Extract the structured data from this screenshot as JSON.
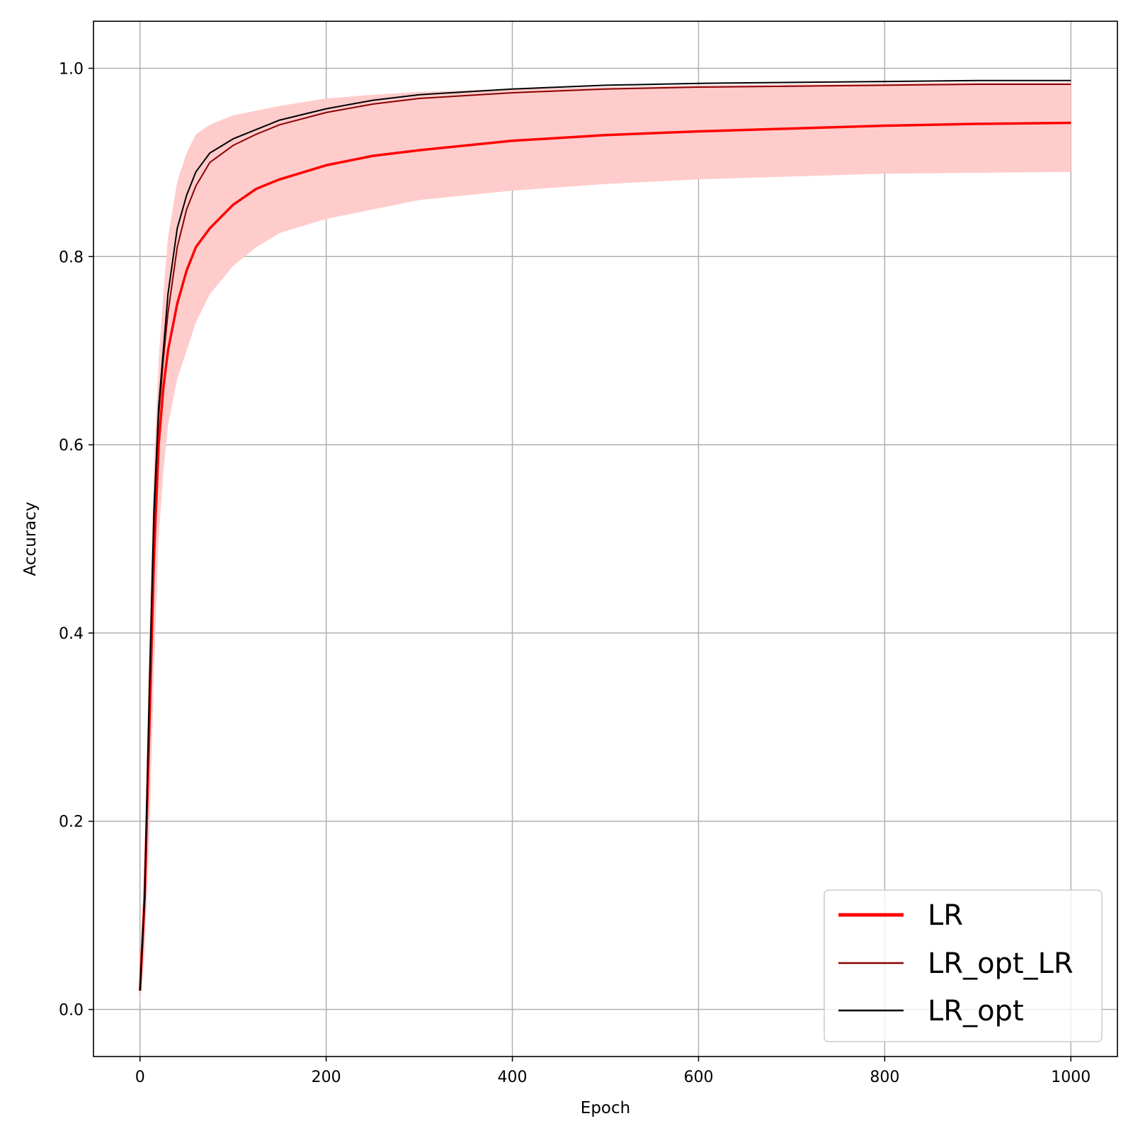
{
  "chart_data": {
    "type": "line",
    "title": "",
    "xlabel": "Epoch",
    "ylabel": "Accuracy",
    "xlim": [
      -50,
      1050
    ],
    "ylim": [
      -0.05,
      1.05
    ],
    "xticks": [
      0,
      200,
      400,
      600,
      800,
      1000
    ],
    "yticks": [
      0.0,
      0.2,
      0.4,
      0.6,
      0.8,
      1.0
    ],
    "xtick_labels": [
      "0",
      "200",
      "400",
      "600",
      "800",
      "1000"
    ],
    "ytick_labels": [
      "0.0",
      "0.2",
      "0.4",
      "0.6",
      "0.8",
      "1.0"
    ],
    "grid": true,
    "legend_position": "bottom-right",
    "series": [
      {
        "name": "LR",
        "color": "#ff0000",
        "x": [
          0,
          5,
          10,
          15,
          20,
          25,
          30,
          40,
          50,
          60,
          75,
          100,
          125,
          150,
          200,
          250,
          300,
          400,
          500,
          600,
          700,
          800,
          900,
          1000
        ],
        "y": [
          0.02,
          0.12,
          0.3,
          0.48,
          0.6,
          0.66,
          0.7,
          0.75,
          0.785,
          0.81,
          0.83,
          0.855,
          0.872,
          0.882,
          0.897,
          0.907,
          0.913,
          0.923,
          0.929,
          0.933,
          0.936,
          0.939,
          0.941,
          0.942
        ]
      },
      {
        "name": "LR_opt_LR",
        "color": "#8b0000",
        "x": [
          0,
          5,
          10,
          15,
          20,
          25,
          30,
          40,
          50,
          60,
          75,
          100,
          125,
          150,
          200,
          250,
          300,
          400,
          500,
          600,
          700,
          800,
          900,
          1000
        ],
        "y": [
          0.02,
          0.12,
          0.33,
          0.52,
          0.63,
          0.69,
          0.74,
          0.81,
          0.85,
          0.875,
          0.9,
          0.918,
          0.93,
          0.94,
          0.953,
          0.962,
          0.968,
          0.974,
          0.978,
          0.98,
          0.981,
          0.982,
          0.983,
          0.983
        ]
      },
      {
        "name": "LR_opt",
        "color": "#000000",
        "x": [
          0,
          5,
          10,
          15,
          20,
          25,
          30,
          40,
          50,
          60,
          75,
          100,
          125,
          150,
          200,
          250,
          300,
          400,
          500,
          600,
          700,
          800,
          900,
          1000
        ],
        "y": [
          0.02,
          0.12,
          0.34,
          0.53,
          0.64,
          0.7,
          0.76,
          0.83,
          0.865,
          0.89,
          0.91,
          0.925,
          0.935,
          0.945,
          0.957,
          0.966,
          0.972,
          0.978,
          0.982,
          0.984,
          0.985,
          0.986,
          0.987,
          0.987
        ]
      }
    ],
    "band": {
      "color": "#ffcccc",
      "x": [
        0,
        5,
        10,
        15,
        20,
        25,
        30,
        40,
        50,
        60,
        75,
        100,
        125,
        150,
        200,
        250,
        300,
        400,
        500,
        600,
        700,
        800,
        900,
        1000
      ],
      "lower": [
        0.005,
        0.06,
        0.18,
        0.36,
        0.5,
        0.57,
        0.62,
        0.67,
        0.7,
        0.73,
        0.76,
        0.79,
        0.81,
        0.825,
        0.84,
        0.85,
        0.86,
        0.87,
        0.877,
        0.882,
        0.885,
        0.888,
        0.889,
        0.89
      ],
      "upper": [
        0.03,
        0.17,
        0.4,
        0.58,
        0.69,
        0.76,
        0.82,
        0.88,
        0.91,
        0.93,
        0.94,
        0.95,
        0.955,
        0.96,
        0.968,
        0.972,
        0.975,
        0.978,
        0.98,
        0.982,
        0.983,
        0.984,
        0.985,
        0.985
      ]
    }
  }
}
